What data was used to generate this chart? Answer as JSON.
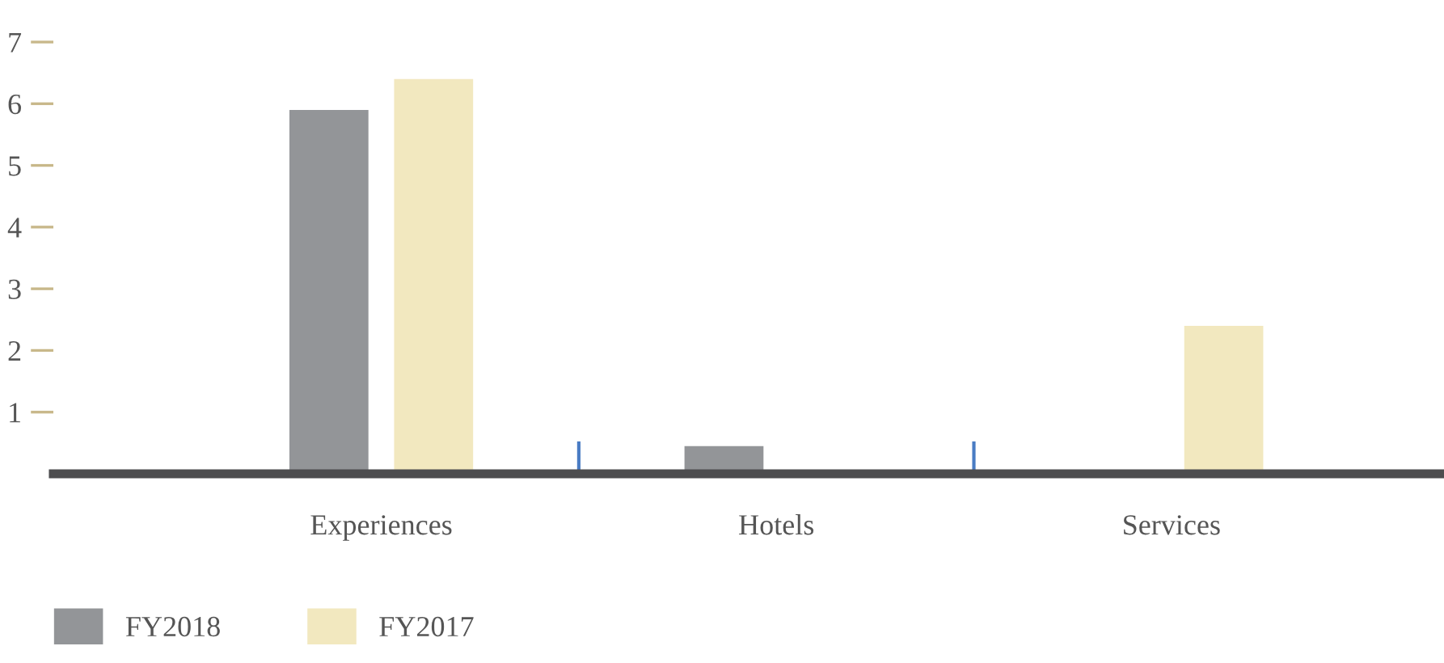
{
  "chart_data": {
    "type": "bar",
    "categories": [
      "Experiences",
      "Hotels",
      "Services"
    ],
    "series": [
      {
        "name": "FY2018",
        "color": "#939598",
        "values": [
          5.9,
          0.45,
          null
        ]
      },
      {
        "name": "FY2017",
        "color": "#f2e8bf",
        "values": [
          6.4,
          null,
          2.4
        ]
      }
    ],
    "ylim": [
      0,
      7
    ],
    "yticks": [
      1,
      2,
      3,
      4,
      5,
      6,
      7
    ],
    "grid": false,
    "legend": "bottom left"
  }
}
